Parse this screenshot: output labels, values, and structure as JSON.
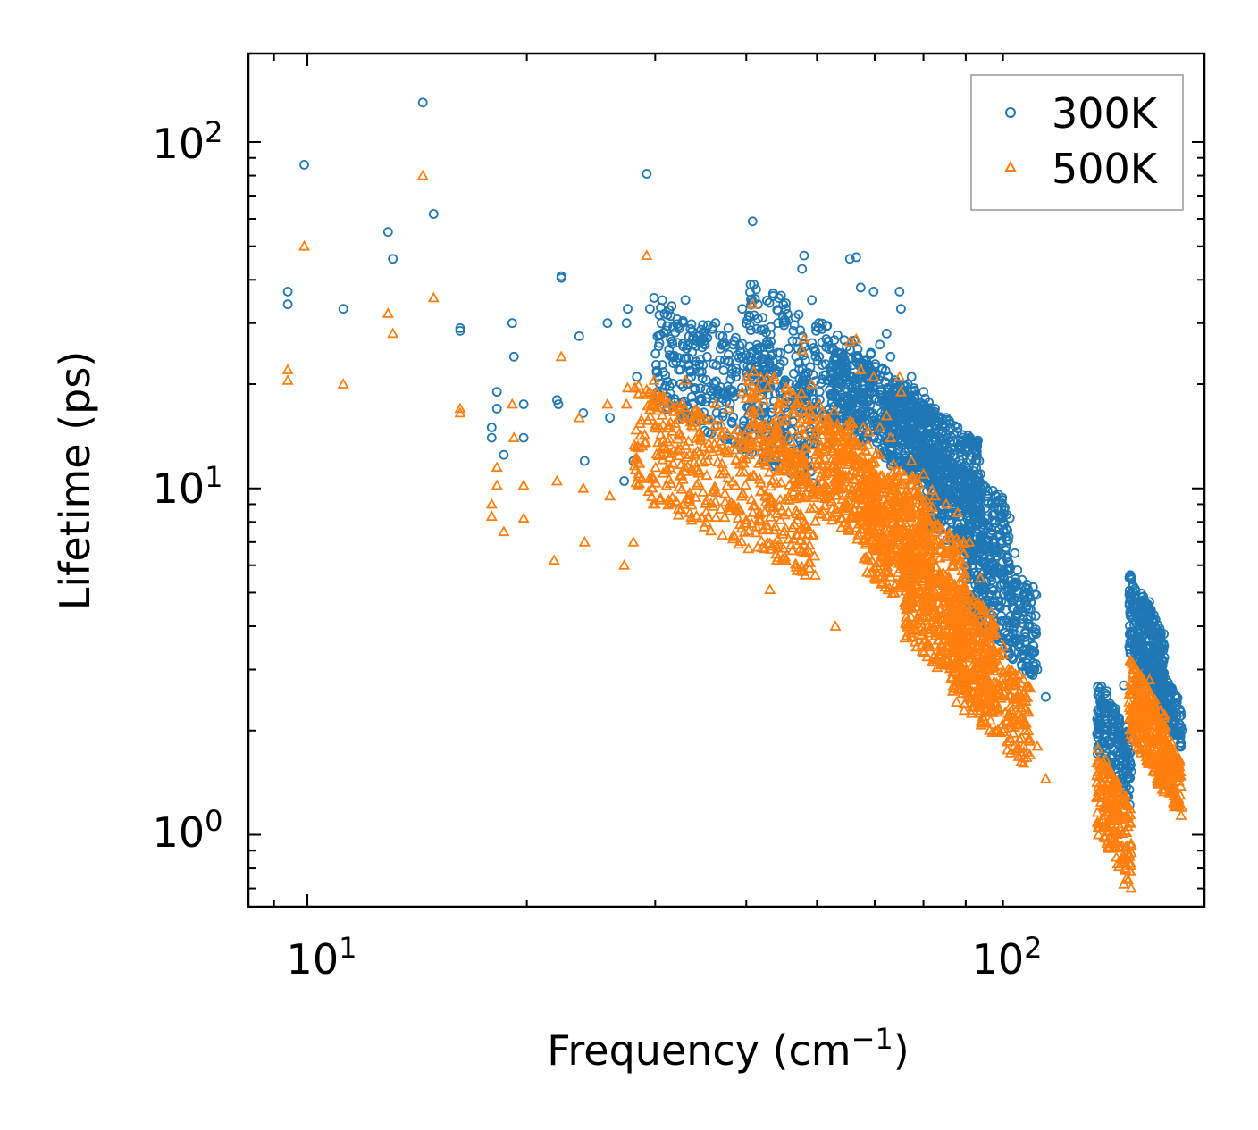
{
  "chart_data": {
    "type": "scatter",
    "x_scale": "log",
    "y_scale": "log",
    "xlim": [
      8.3,
      170
    ],
    "ylim": [
      0.62,
      180
    ],
    "xlabel": "Frequency (cm",
    "xlabel_sup": "−1",
    "xlabel_close": ")",
    "ylabel": "Lifetime (ps)",
    "x_tick_labels": [
      {
        "value": 10,
        "base": "10",
        "exp": "1"
      },
      {
        "value": 100,
        "base": "10",
        "exp": "2"
      }
    ],
    "y_tick_labels": [
      {
        "value": 1,
        "base": "10",
        "exp": "0"
      },
      {
        "value": 10,
        "base": "10",
        "exp": "1"
      },
      {
        "value": 100,
        "base": "10",
        "exp": "2"
      }
    ],
    "legend_position": "top-right",
    "series": [
      {
        "name": "300K",
        "marker": "circle",
        "color": "#1f77b4",
        "points": [
          [
            9.4,
            37
          ],
          [
            9.4,
            34
          ],
          [
            9.9,
            86
          ],
          [
            11.2,
            33
          ],
          [
            12.9,
            55
          ],
          [
            13.1,
            46
          ],
          [
            14.4,
            130
          ],
          [
            14.9,
            62
          ],
          [
            16.2,
            29
          ],
          [
            16.2,
            28.5
          ],
          [
            17.9,
            15
          ],
          [
            17.9,
            14
          ],
          [
            18.2,
            19
          ],
          [
            18.2,
            17
          ],
          [
            18.6,
            12.5
          ],
          [
            19.1,
            30
          ],
          [
            19.2,
            24
          ],
          [
            19.8,
            17.5
          ],
          [
            19.8,
            14
          ],
          [
            22.0,
            18
          ],
          [
            22.1,
            17.5
          ],
          [
            22.3,
            41
          ],
          [
            22.3,
            40.5
          ],
          [
            23.6,
            27.5
          ],
          [
            23.9,
            16.5
          ],
          [
            24.0,
            12
          ],
          [
            25.8,
            30
          ],
          [
            26.0,
            16
          ],
          [
            27.5,
            33
          ],
          [
            27.4,
            30
          ],
          [
            28.3,
            21
          ],
          [
            29.5,
            33
          ],
          [
            29.9,
            35.5
          ],
          [
            28.0,
            12
          ],
          [
            27.2,
            10.5
          ],
          [
            29.2,
            81
          ],
          [
            31.5,
            27
          ],
          [
            33.0,
            35
          ],
          [
            32.5,
            22
          ],
          [
            33.8,
            26
          ],
          [
            35.0,
            28
          ],
          [
            36.3,
            30
          ],
          [
            37.8,
            29
          ],
          [
            39.5,
            33
          ],
          [
            40.8,
            59
          ],
          [
            41.5,
            34
          ],
          [
            42.6,
            26
          ],
          [
            43.1,
            8.8
          ],
          [
            44.2,
            30
          ],
          [
            45.3,
            33
          ],
          [
            46.4,
            28.5
          ],
          [
            47.7,
            43
          ],
          [
            48.0,
            47
          ],
          [
            49.2,
            35
          ],
          [
            50.3,
            30
          ],
          [
            51.5,
            27
          ],
          [
            52.7,
            25
          ],
          [
            53.0,
            24
          ],
          [
            55.5,
            46
          ],
          [
            56.6,
            46.5
          ],
          [
            57.4,
            38
          ],
          [
            59.8,
            37
          ],
          [
            61.0,
            26
          ],
          [
            62.3,
            28
          ],
          [
            63.1,
            24
          ],
          [
            64.9,
            37
          ],
          [
            65.2,
            33
          ],
          [
            67.4,
            21
          ],
          [
            70.0,
            19
          ],
          [
            72.6,
            17
          ],
          [
            75.2,
            16
          ],
          [
            78.0,
            15
          ],
          [
            80.9,
            14
          ],
          [
            83.8,
            11
          ],
          [
            86.9,
            9
          ],
          [
            90.1,
            8
          ],
          [
            93.4,
            6.5
          ],
          [
            96.8,
            5
          ],
          [
            100.3,
            3
          ],
          [
            103.0,
            2.5
          ],
          [
            121.7,
            2.3
          ],
          [
            124.9,
            2.6
          ],
          [
            128.3,
            2.0
          ],
          [
            131.8,
            2.7
          ],
          [
            135.4,
            3.6
          ],
          [
            139.1,
            4.1
          ],
          [
            142.9,
            4.7
          ],
          [
            146.9,
            3.8
          ],
          [
            150.9,
            2.7
          ],
          [
            155.2,
            2.1
          ],
          [
            158.4,
            2.0
          ]
        ],
        "clusters": [
          {
            "x": [
              30,
              50
            ],
            "y": [
              12,
              30
            ],
            "n": 450
          },
          {
            "x": [
              40,
              60
            ],
            "y": [
              15,
              35
            ],
            "n": 220
          },
          {
            "x": [
              52,
              72
            ],
            "y": [
              12,
              24
            ],
            "n": 400
          },
          {
            "x": [
              62,
              84
            ],
            "y": [
              9,
              18
            ],
            "n": 450
          },
          {
            "x": [
              70,
              92
            ],
            "y": [
              6,
              12
            ],
            "n": 350
          },
          {
            "x": [
              80,
              100
            ],
            "y": [
              3.2,
              7
            ],
            "n": 320
          },
          {
            "x": [
              121,
              135
            ],
            "y": [
              1.35,
              2.5
            ],
            "n": 200
          },
          {
            "x": [
              134,
              150
            ],
            "y": [
              2.6,
              5
            ],
            "n": 300
          },
          {
            "x": [
              148,
              158
            ],
            "y": [
              1.9,
              2.8
            ],
            "n": 120
          }
        ]
      },
      {
        "name": "500K",
        "marker": "triangle",
        "color": "#ff7f0e",
        "points": [
          [
            9.4,
            22
          ],
          [
            9.4,
            20.5
          ],
          [
            9.9,
            50
          ],
          [
            11.2,
            20
          ],
          [
            12.9,
            32
          ],
          [
            13.1,
            28
          ],
          [
            14.4,
            80
          ],
          [
            14.9,
            35.5
          ],
          [
            16.2,
            17
          ],
          [
            16.2,
            16.5
          ],
          [
            17.9,
            9
          ],
          [
            17.9,
            8.3
          ],
          [
            18.2,
            11.5
          ],
          [
            18.2,
            10.2
          ],
          [
            18.6,
            7.5
          ],
          [
            19.1,
            17.5
          ],
          [
            19.2,
            14
          ],
          [
            19.8,
            10.2
          ],
          [
            19.8,
            8.2
          ],
          [
            22.0,
            10.5
          ],
          [
            21.8,
            6.2
          ],
          [
            22.3,
            24
          ],
          [
            23.6,
            16
          ],
          [
            23.9,
            10
          ],
          [
            24.0,
            7
          ],
          [
            25.8,
            17.5
          ],
          [
            26.0,
            9.5
          ],
          [
            27.5,
            19.5
          ],
          [
            27.4,
            17.5
          ],
          [
            28.3,
            12.2
          ],
          [
            29.5,
            19
          ],
          [
            29.9,
            20.5
          ],
          [
            28.0,
            7
          ],
          [
            27.2,
            6
          ],
          [
            29.2,
            47
          ],
          [
            31.5,
            15.5
          ],
          [
            33.0,
            20.5
          ],
          [
            32.5,
            13
          ],
          [
            33.8,
            15
          ],
          [
            35.0,
            16
          ],
          [
            36.3,
            17.5
          ],
          [
            37.8,
            17
          ],
          [
            39.5,
            19
          ],
          [
            40.8,
            34
          ],
          [
            41.5,
            19.5
          ],
          [
            42.6,
            15
          ],
          [
            43.1,
            5.1
          ],
          [
            44.2,
            17.5
          ],
          [
            45.3,
            19.5
          ],
          [
            46.4,
            16.5
          ],
          [
            47.7,
            25
          ],
          [
            48.0,
            27
          ],
          [
            49.2,
            20
          ],
          [
            50.3,
            17.5
          ],
          [
            51.5,
            15.5
          ],
          [
            52.7,
            14
          ],
          [
            53.0,
            4.0
          ],
          [
            55.5,
            26.5
          ],
          [
            56.6,
            27
          ],
          [
            57.4,
            22
          ],
          [
            59.8,
            21
          ],
          [
            61.0,
            15
          ],
          [
            62.3,
            16.2
          ],
          [
            63.1,
            14
          ],
          [
            64.9,
            21
          ],
          [
            65.2,
            19
          ],
          [
            67.4,
            12
          ],
          [
            70.0,
            11
          ],
          [
            72.6,
            9.5
          ],
          [
            75.2,
            9
          ],
          [
            78.0,
            8.5
          ],
          [
            80.9,
            7
          ],
          [
            83.8,
            5.5
          ],
          [
            86.9,
            4
          ],
          [
            90.1,
            3.5
          ],
          [
            93.4,
            2.7
          ],
          [
            96.8,
            2.1
          ],
          [
            100.3,
            1.8
          ],
          [
            103.0,
            1.45
          ],
          [
            121.7,
            1.0
          ],
          [
            124.9,
            1.2
          ],
          [
            128.3,
            0.95
          ],
          [
            131.8,
            0.72
          ],
          [
            135.4,
            1.9
          ],
          [
            139.1,
            2.3
          ],
          [
            142.9,
            2.8
          ],
          [
            146.9,
            2.2
          ],
          [
            150.9,
            1.6
          ],
          [
            155.2,
            1.3
          ],
          [
            158.4,
            1.2
          ]
        ],
        "clusters": [
          {
            "x": [
              28,
              50
            ],
            "y": [
              6.5,
              17
            ],
            "n": 450
          },
          {
            "x": [
              40,
              60
            ],
            "y": [
              9,
              20
            ],
            "n": 250
          },
          {
            "x": [
              50,
              72
            ],
            "y": [
              6,
              14
            ],
            "n": 400
          },
          {
            "x": [
              58,
              80
            ],
            "y": [
              4,
              10
            ],
            "n": 450
          },
          {
            "x": [
              66,
              88
            ],
            "y": [
              2.6,
              6
            ],
            "n": 380
          },
          {
            "x": [
              76,
              98
            ],
            "y": [
              1.8,
              4
            ],
            "n": 320
          },
          {
            "x": [
              121,
              135
            ],
            "y": [
              0.8,
              1.6
            ],
            "n": 200
          },
          {
            "x": [
              134,
              150
            ],
            "y": [
              1.5,
              2.9
            ],
            "n": 280
          },
          {
            "x": [
              148,
              158
            ],
            "y": [
              1.2,
              2.0
            ],
            "n": 120
          }
        ]
      }
    ]
  }
}
